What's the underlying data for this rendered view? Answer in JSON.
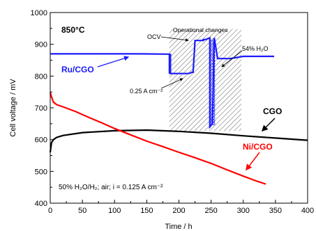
{
  "chart_data": {
    "type": "line",
    "xlabel": "Time / h",
    "ylabel": "Cell voltage / mV",
    "xlim": [
      0,
      400
    ],
    "ylim": [
      400,
      1000
    ],
    "xticks": [
      0,
      50,
      100,
      150,
      200,
      250,
      300,
      350,
      400
    ],
    "yticks": [
      400,
      500,
      600,
      700,
      800,
      900,
      1000
    ],
    "grid": false,
    "temperature_label": "850°C",
    "conditions_label": "50% H₂O/H₂; air; i = 0.125 A cm⁻²",
    "annotations": {
      "operational_changes": "Operational changes",
      "ocv": "OCV",
      "h2o": "54% H₂O",
      "current": "0.25 A cm⁻²"
    },
    "shaded_region": [
      185,
      297
    ],
    "series": [
      {
        "name": "Ru/CGO",
        "color": "#1a1aff",
        "points": [
          [
            0,
            870
          ],
          [
            20,
            870
          ],
          [
            60,
            870
          ],
          [
            100,
            870
          ],
          [
            140,
            870
          ],
          [
            182,
            869
          ],
          [
            186,
            869
          ],
          [
            186,
            808
          ],
          [
            200,
            808
          ],
          [
            210,
            808
          ],
          [
            210,
            808
          ],
          [
            215,
            808
          ],
          [
            218,
            810
          ],
          [
            220,
            812
          ],
          [
            222,
            812
          ],
          [
            225,
            912
          ],
          [
            238,
            912
          ],
          [
            238,
            915
          ],
          [
            242,
            915
          ],
          [
            245,
            918
          ],
          [
            248,
            920
          ],
          [
            248,
            640
          ],
          [
            250,
            645
          ],
          [
            252,
            650
          ],
          [
            255,
            920
          ],
          [
            260,
            855
          ],
          [
            280,
            855
          ],
          [
            300,
            862
          ],
          [
            320,
            862
          ],
          [
            348,
            862
          ]
        ]
      },
      {
        "name": "CGO",
        "color": "#000000",
        "points": [
          [
            0,
            560
          ],
          [
            2,
            590
          ],
          [
            5,
            600
          ],
          [
            10,
            607
          ],
          [
            20,
            613
          ],
          [
            50,
            622
          ],
          [
            100,
            628
          ],
          [
            150,
            630
          ],
          [
            200,
            626
          ],
          [
            250,
            620
          ],
          [
            300,
            612
          ],
          [
            350,
            605
          ],
          [
            400,
            598
          ]
        ]
      },
      {
        "name": "Ni/CGO",
        "color": "#ff0000",
        "points": [
          [
            0,
            748
          ],
          [
            2,
            735
          ],
          [
            5,
            718
          ],
          [
            10,
            710
          ],
          [
            20,
            703
          ],
          [
            40,
            688
          ],
          [
            60,
            670
          ],
          [
            80,
            653
          ],
          [
            100,
            635
          ],
          [
            125,
            615
          ],
          [
            150,
            595
          ],
          [
            175,
            578
          ],
          [
            200,
            560
          ],
          [
            225,
            543
          ],
          [
            250,
            525
          ],
          [
            275,
            505
          ],
          [
            300,
            485
          ],
          [
            320,
            470
          ],
          [
            335,
            460
          ]
        ]
      }
    ]
  }
}
